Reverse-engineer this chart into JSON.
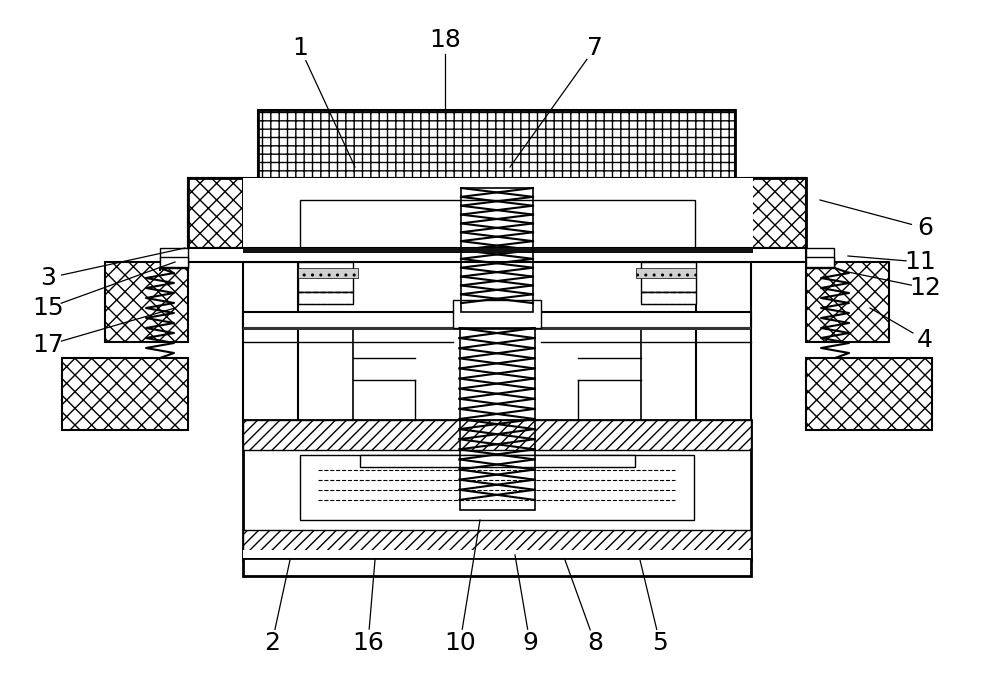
{
  "bg_color": "#ffffff",
  "lc": "#000000",
  "figsize": [
    10.0,
    6.92
  ],
  "dpi": 100,
  "label_data": [
    [
      "1",
      300,
      48,
      355,
      167
    ],
    [
      "18",
      445,
      40,
      445,
      118
    ],
    [
      "7",
      595,
      48,
      510,
      167
    ],
    [
      "6",
      925,
      228,
      820,
      200
    ],
    [
      "11",
      920,
      262,
      848,
      256
    ],
    [
      "12",
      925,
      288,
      848,
      272
    ],
    [
      "3",
      48,
      278,
      185,
      248
    ],
    [
      "15",
      48,
      308,
      175,
      262
    ],
    [
      "17",
      48,
      345,
      175,
      308
    ],
    [
      "4",
      925,
      340,
      870,
      308
    ],
    [
      "2",
      272,
      643,
      290,
      560
    ],
    [
      "16",
      368,
      643,
      375,
      560
    ],
    [
      "10",
      460,
      643,
      480,
      520
    ],
    [
      "9",
      530,
      643,
      515,
      555
    ],
    [
      "8",
      595,
      643,
      565,
      560
    ],
    [
      "5",
      660,
      643,
      640,
      560
    ]
  ]
}
